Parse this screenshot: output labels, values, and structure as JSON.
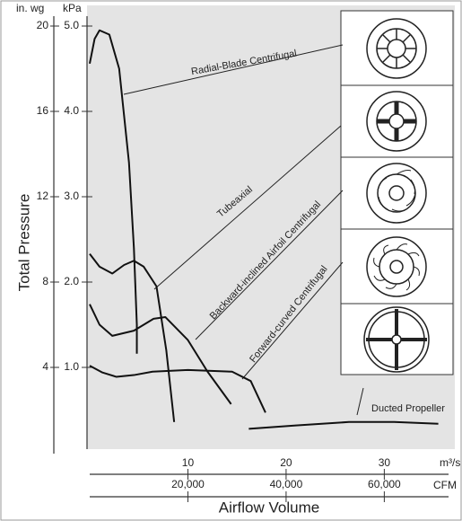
{
  "chart_data": {
    "type": "line",
    "y_label": "Total Pressure",
    "x_label": "Airflow Volume",
    "y_unit": "kPa",
    "y2_unit": "in. wg",
    "x_unit": "m³/s",
    "x2_unit": "CFM",
    "xlim": [
      0,
      37
    ],
    "xticks": [
      10,
      20,
      30
    ],
    "x2lim": [
      0,
      74000
    ],
    "x2ticks": [
      {
        "value": 20000,
        "label": "20,000"
      },
      {
        "value": 40000,
        "label": "40,000"
      },
      {
        "value": 60000,
        "label": "60,000"
      }
    ],
    "ylim": [
      0,
      5.2
    ],
    "yticks": [
      {
        "value": 1,
        "label": "1.0"
      },
      {
        "value": 2,
        "label": "2.0"
      },
      {
        "value": 3,
        "label": "3.0"
      },
      {
        "value": 4,
        "label": "4.0"
      },
      {
        "value": 5,
        "label": "5.0"
      }
    ],
    "y2lim": [
      0,
      20.8
    ],
    "y2ticks": [
      4,
      8,
      12,
      16,
      20
    ],
    "series": [
      {
        "name": "Radial-Blade Centrifugal",
        "color": "#111",
        "x": [
          0,
          0.5,
          1,
          2,
          3,
          4,
          4.5,
          4.8,
          4.8
        ],
        "values": [
          4.56,
          4.85,
          4.95,
          4.9,
          4.5,
          3.4,
          2.4,
          1.5,
          1.16
        ]
      },
      {
        "name": "Tubeaxial",
        "color": "#111",
        "x": [
          0,
          1,
          2.3,
          3.5,
          4.5,
          5.5,
          6.8,
          7.8,
          8.6
        ],
        "values": [
          2.33,
          2.18,
          2.1,
          2.2,
          2.25,
          2.18,
          1.95,
          1.2,
          0.36
        ]
      },
      {
        "name": "Backward-inclined Airfoil Centrifugal",
        "color": "#111",
        "x": [
          0,
          1,
          2.3,
          4.5,
          6.5,
          7.7,
          10,
          12,
          14.4
        ],
        "values": [
          1.74,
          1.5,
          1.37,
          1.43,
          1.57,
          1.59,
          1.32,
          0.95,
          0.57
        ]
      },
      {
        "name": "Forward-curved Centrifugal",
        "color": "#111",
        "x": [
          0,
          1.3,
          2.7,
          4.5,
          6.4,
          10,
          14.5,
          16.4,
          17.9
        ],
        "values": [
          1.02,
          0.94,
          0.89,
          0.91,
          0.95,
          0.97,
          0.95,
          0.84,
          0.47
        ]
      },
      {
        "name": "Ducted Propeller",
        "color": "#111",
        "x": [
          16.2,
          21,
          26.4,
          31,
          35.5
        ],
        "values": [
          0.28,
          0.32,
          0.36,
          0.36,
          0.34
        ]
      }
    ]
  }
}
